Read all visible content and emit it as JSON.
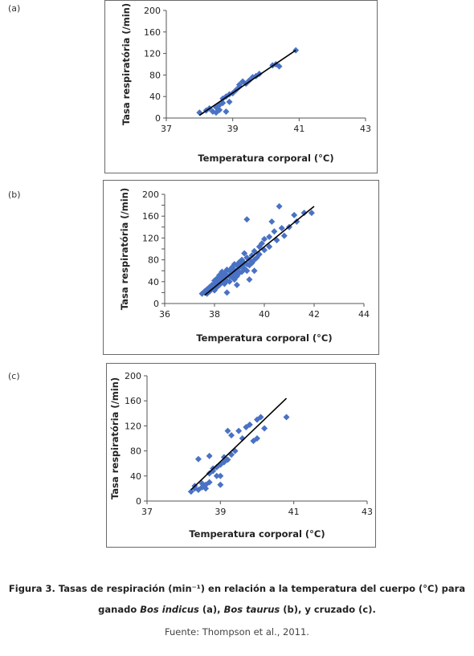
{
  "panels": [
    {
      "letter": "(a)"
    },
    {
      "letter": "(b)"
    },
    {
      "letter": "(c)"
    }
  ],
  "caption": {
    "line1": "Figura 3. Tasas de respiración (min⁻¹) en relación a la temperatura del cuerpo (°C) para",
    "line2_pre": "ganado ",
    "line2_em1": "Bos indicus",
    "line2_mid": " (a), ",
    "line2_em2": "Bos taurus",
    "line2_post": " (b), y cruzado (c).",
    "source": "Fuente: Thompson et al., 2011."
  },
  "chart_data": [
    {
      "type": "scatter",
      "panel": "(a)",
      "xlabel": "Temperatura corporal (°C)",
      "ylabel": "Tasa respiratória (/min)",
      "xlim": [
        37,
        43
      ],
      "ylim": [
        0,
        200
      ],
      "xticks": [
        37,
        39,
        41,
        43
      ],
      "yticks": [
        0,
        40,
        80,
        120,
        160,
        200
      ],
      "marker_color": "#4a72c4",
      "trendline": {
        "x1": 38.0,
        "y1": 5,
        "x2": 40.9,
        "y2": 126
      },
      "points": [
        [
          38.0,
          10
        ],
        [
          38.2,
          14
        ],
        [
          38.3,
          18
        ],
        [
          38.4,
          12
        ],
        [
          38.5,
          20
        ],
        [
          38.5,
          10
        ],
        [
          38.6,
          15
        ],
        [
          38.6,
          24
        ],
        [
          38.7,
          28
        ],
        [
          38.7,
          36
        ],
        [
          38.8,
          40
        ],
        [
          38.8,
          12
        ],
        [
          38.9,
          30
        ],
        [
          38.9,
          44
        ],
        [
          39.0,
          46
        ],
        [
          39.1,
          52
        ],
        [
          39.2,
          58
        ],
        [
          39.2,
          62
        ],
        [
          39.3,
          68
        ],
        [
          39.4,
          64
        ],
        [
          39.5,
          70
        ],
        [
          39.6,
          76
        ],
        [
          39.7,
          78
        ],
        [
          39.8,
          82
        ],
        [
          40.2,
          98
        ],
        [
          40.3,
          100
        ],
        [
          40.4,
          96
        ],
        [
          40.9,
          126
        ]
      ]
    },
    {
      "type": "scatter",
      "panel": "(b)",
      "xlabel": "Temperatura corporal (°C)",
      "ylabel": "Tasa respiratória (/min)",
      "xlim": [
        36,
        44
      ],
      "ylim": [
        0,
        200
      ],
      "xticks": [
        36,
        38,
        40,
        42,
        44
      ],
      "yticks": [
        0,
        20,
        40,
        60,
        80,
        100,
        120,
        140,
        160,
        180,
        200
      ],
      "ytick_labels": [
        "0",
        "",
        "40",
        "",
        "80",
        "",
        "120",
        "",
        "160",
        "",
        "200"
      ],
      "marker_color": "#4a72c4",
      "trendline": {
        "x1": 37.6,
        "y1": 15,
        "x2": 42.0,
        "y2": 178
      },
      "points": [
        [
          37.5,
          18
        ],
        [
          37.6,
          22
        ],
        [
          37.7,
          26
        ],
        [
          37.7,
          18
        ],
        [
          37.8,
          30
        ],
        [
          37.8,
          22
        ],
        [
          37.9,
          28
        ],
        [
          37.9,
          34
        ],
        [
          38.0,
          24
        ],
        [
          38.0,
          36
        ],
        [
          38.0,
          42
        ],
        [
          38.1,
          30
        ],
        [
          38.1,
          38
        ],
        [
          38.1,
          46
        ],
        [
          38.2,
          34
        ],
        [
          38.2,
          44
        ],
        [
          38.2,
          52
        ],
        [
          38.3,
          40
        ],
        [
          38.3,
          50
        ],
        [
          38.3,
          58
        ],
        [
          38.4,
          36
        ],
        [
          38.4,
          46
        ],
        [
          38.4,
          56
        ],
        [
          38.5,
          42
        ],
        [
          38.5,
          52
        ],
        [
          38.5,
          62
        ],
        [
          38.6,
          40
        ],
        [
          38.6,
          50
        ],
        [
          38.6,
          60
        ],
        [
          38.7,
          48
        ],
        [
          38.7,
          56
        ],
        [
          38.7,
          66
        ],
        [
          38.8,
          44
        ],
        [
          38.8,
          54
        ],
        [
          38.8,
          62
        ],
        [
          38.8,
          72
        ],
        [
          38.9,
          50
        ],
        [
          38.9,
          60
        ],
        [
          38.9,
          70
        ],
        [
          39.0,
          56
        ],
        [
          39.0,
          66
        ],
        [
          39.0,
          76
        ],
        [
          39.1,
          58
        ],
        [
          39.1,
          70
        ],
        [
          39.1,
          80
        ],
        [
          39.2,
          64
        ],
        [
          39.2,
          74
        ],
        [
          39.2,
          92
        ],
        [
          39.3,
          60
        ],
        [
          39.3,
          72
        ],
        [
          39.3,
          84
        ],
        [
          39.4,
          70
        ],
        [
          39.4,
          80
        ],
        [
          39.5,
          74
        ],
        [
          39.5,
          88
        ],
        [
          39.6,
          80
        ],
        [
          39.6,
          96
        ],
        [
          39.7,
          84
        ],
        [
          39.8,
          90
        ],
        [
          39.8,
          104
        ],
        [
          39.9,
          110
        ],
        [
          40.0,
          98
        ],
        [
          40.0,
          118
        ],
        [
          40.2,
          104
        ],
        [
          40.2,
          122
        ],
        [
          40.3,
          150
        ],
        [
          40.4,
          132
        ],
        [
          40.5,
          116
        ],
        [
          40.6,
          178
        ],
        [
          40.7,
          138
        ],
        [
          40.8,
          124
        ],
        [
          41.0,
          140
        ],
        [
          41.2,
          162
        ],
        [
          41.3,
          150
        ],
        [
          41.6,
          166
        ],
        [
          41.9,
          166
        ],
        [
          39.3,
          154
        ],
        [
          38.5,
          20
        ],
        [
          38.9,
          34
        ],
        [
          39.4,
          44
        ],
        [
          39.6,
          60
        ]
      ]
    },
    {
      "type": "scatter",
      "panel": "(c)",
      "xlabel": "Temperatura corporal (°C)",
      "ylabel": "Tasa respiratória (/min)",
      "xlim": [
        37,
        43
      ],
      "ylim": [
        0,
        200
      ],
      "xticks": [
        37,
        39,
        41,
        43
      ],
      "yticks": [
        0,
        40,
        80,
        120,
        160,
        200
      ],
      "marker_color": "#4a72c4",
      "trendline": {
        "x1": 38.2,
        "y1": 18,
        "x2": 40.8,
        "y2": 164
      },
      "points": [
        [
          38.2,
          15
        ],
        [
          38.3,
          20
        ],
        [
          38.3,
          24
        ],
        [
          38.4,
          18
        ],
        [
          38.4,
          67
        ],
        [
          38.5,
          22
        ],
        [
          38.5,
          28
        ],
        [
          38.6,
          20
        ],
        [
          38.6,
          26
        ],
        [
          38.7,
          30
        ],
        [
          38.7,
          44
        ],
        [
          38.7,
          72
        ],
        [
          38.8,
          48
        ],
        [
          38.8,
          52
        ],
        [
          38.9,
          54
        ],
        [
          38.9,
          40
        ],
        [
          39.0,
          26
        ],
        [
          39.0,
          58
        ],
        [
          39.1,
          62
        ],
        [
          39.1,
          70
        ],
        [
          39.2,
          66
        ],
        [
          39.2,
          112
        ],
        [
          39.3,
          105
        ],
        [
          39.4,
          80
        ],
        [
          39.5,
          112
        ],
        [
          39.6,
          100
        ],
        [
          39.7,
          118
        ],
        [
          39.8,
          122
        ],
        [
          39.9,
          96
        ],
        [
          40.0,
          100
        ],
        [
          40.0,
          130
        ],
        [
          40.1,
          134
        ],
        [
          40.2,
          116
        ],
        [
          40.8,
          134
        ],
        [
          39.0,
          40
        ],
        [
          39.3,
          74
        ]
      ]
    }
  ]
}
